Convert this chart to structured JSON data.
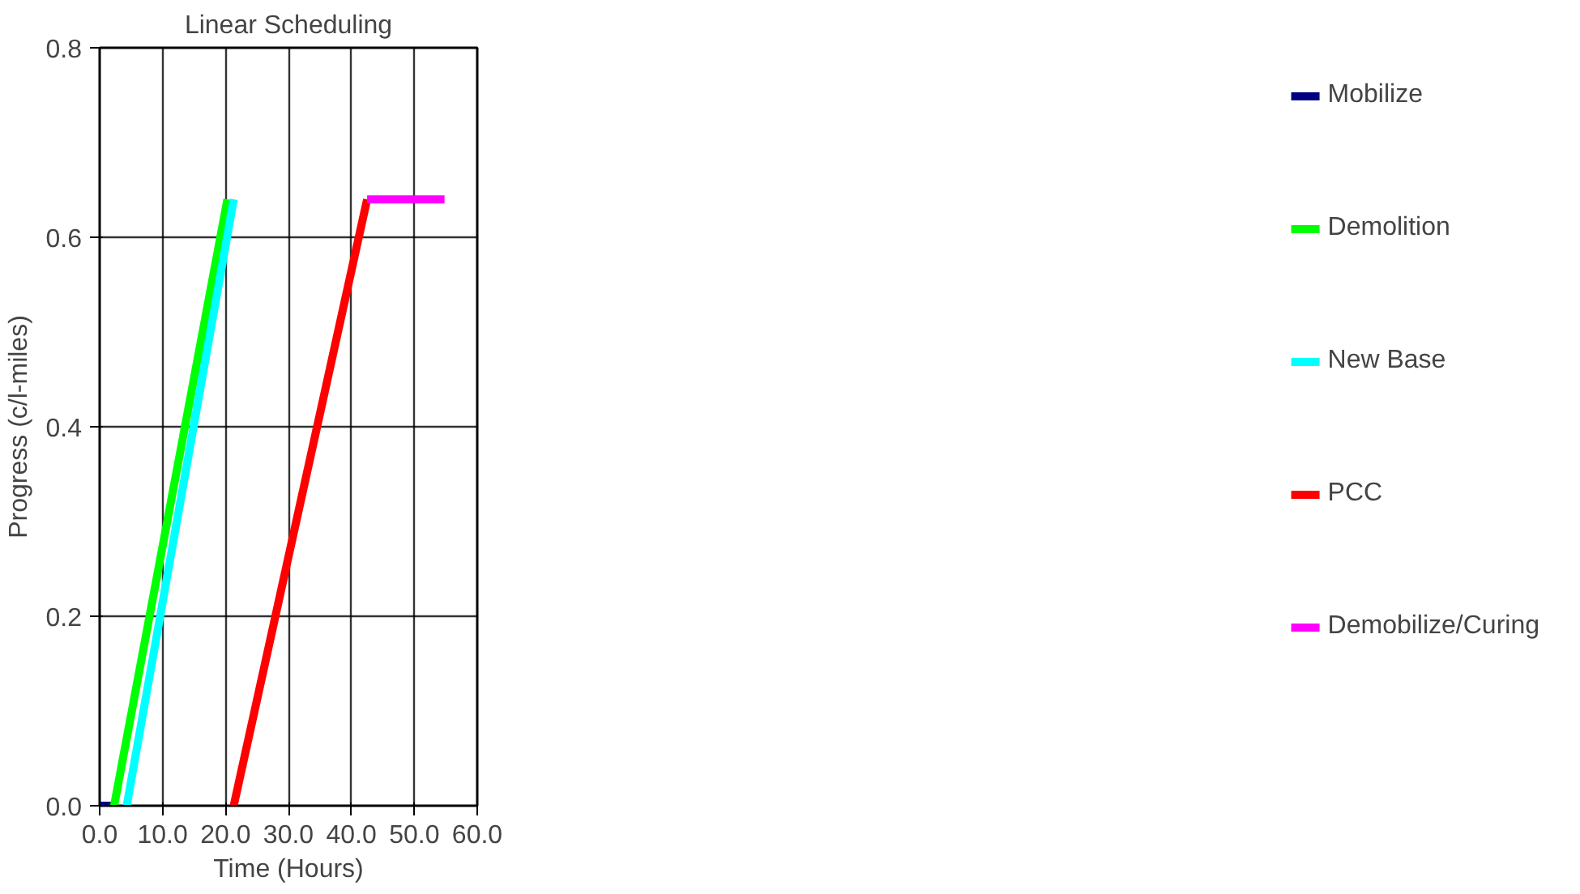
{
  "chart_data": {
    "type": "line",
    "title": "Linear Scheduling",
    "xlabel": "Time (Hours)",
    "ylabel": "Progress (c/l-miles)",
    "xlim": [
      0,
      60
    ],
    "ylim": [
      0,
      0.8
    ],
    "xticks": [
      {
        "value": 0,
        "label": "0.0"
      },
      {
        "value": 10,
        "label": "10.0"
      },
      {
        "value": 20,
        "label": "20.0"
      },
      {
        "value": 30,
        "label": "30.0"
      },
      {
        "value": 40,
        "label": "40.0"
      },
      {
        "value": 50,
        "label": "50.0"
      },
      {
        "value": 60,
        "label": "60.0"
      }
    ],
    "yticks": [
      {
        "value": 0,
        "label": "0.0"
      },
      {
        "value": 0.2,
        "label": "0.2"
      },
      {
        "value": 0.4,
        "label": "0.4"
      },
      {
        "value": 0.6,
        "label": "0.6"
      },
      {
        "value": 0.8,
        "label": "0.8"
      }
    ],
    "grid": true,
    "legend": "right",
    "line_style": "solid",
    "marker": "none",
    "series": [
      {
        "name": "Mobilize",
        "color": "#000080",
        "x": [
          0,
          2.3
        ],
        "values": [
          0,
          0
        ]
      },
      {
        "name": "Demolition",
        "color": "#00ff00",
        "x": [
          2.3,
          20.3
        ],
        "values": [
          0,
          0.64
        ]
      },
      {
        "name": "New Base",
        "color": "#00ffff",
        "x": [
          4.3,
          21.3
        ],
        "values": [
          0,
          0.64
        ]
      },
      {
        "name": "PCC",
        "color": "#ff0000",
        "x": [
          21.3,
          42.5
        ],
        "values": [
          0,
          0.64
        ]
      },
      {
        "name": "Demobilize/Curing",
        "color": "#ff00ff",
        "x": [
          42.5,
          54.8
        ],
        "values": [
          0.64,
          0.64
        ]
      }
    ]
  }
}
